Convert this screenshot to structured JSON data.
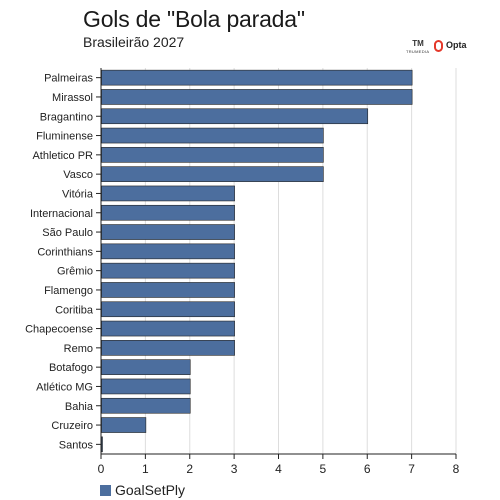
{
  "header": {
    "title": "Gols de \"Bola parada\"",
    "subtitle": "Brasileirão 2027"
  },
  "logos": {
    "truemedia_mark": "TM",
    "truemedia_text": "TRUMEDIA",
    "opta_text": "Opta"
  },
  "legend": {
    "label": "GoalSetPly"
  },
  "colors": {
    "bar": "#4c6e9e",
    "bar_stroke": "#222222",
    "grid": "#dddddd",
    "axis": "#222222",
    "opta_red": "#e4382a"
  },
  "chart_data": {
    "type": "bar",
    "orientation": "horizontal",
    "categories": [
      "Palmeiras",
      "Mirassol",
      "Bragantino",
      "Fluminense",
      "Athletico PR",
      "Vasco",
      "Vitória",
      "Internacional",
      "São Paulo",
      "Corinthians",
      "Grêmio",
      "Flamengo",
      "Coritiba",
      "Chapecoense",
      "Remo",
      "Botafogo",
      "Atlético MG",
      "Bahia",
      "Cruzeiro",
      "Santos"
    ],
    "series": [
      {
        "name": "GoalSetPly",
        "values": [
          7,
          7,
          6,
          5,
          5,
          5,
          3,
          3,
          3,
          3,
          3,
          3,
          3,
          3,
          3,
          2,
          2,
          2,
          1,
          0
        ]
      }
    ],
    "x_ticks": [
      "0",
      "1",
      "2",
      "3",
      "4",
      "5",
      "6",
      "7",
      "8"
    ],
    "xlim": [
      0,
      8
    ],
    "grid": "vertical",
    "legend_position": "bottom-left"
  }
}
